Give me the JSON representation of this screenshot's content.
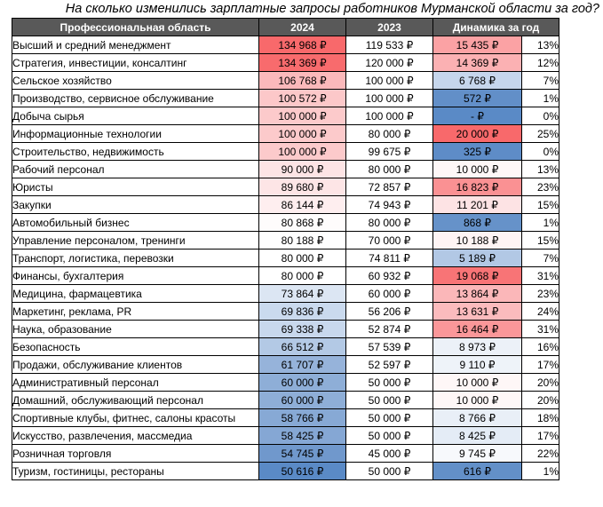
{
  "title": "На сколько изменились зарплатные запросы работников Мурманской области за год?",
  "headers": {
    "area": "Профессиональная область",
    "y2024": "2024",
    "y2023": "2023",
    "dynamics": "Динамика за год"
  },
  "colors": {
    "header_bg": "#595959",
    "high": "#f8696b",
    "mid": "#ffffff",
    "low": "#5a8ac6"
  },
  "rows": [
    {
      "area": "Высший и средний менеджмент",
      "y2024": "134 968 ₽",
      "y2023": "119 533 ₽",
      "diff": "15 435 ₽",
      "pct": "13%",
      "c2024": "#f8696b",
      "cdiff": "#fba2a4"
    },
    {
      "area": "Стратегия, инвестиции, консалтинг",
      "y2024": "134 369 ₽",
      "y2023": "120 000 ₽",
      "diff": "14 369 ₽",
      "pct": "12%",
      "c2024": "#f86b6d",
      "cdiff": "#fbb1b3"
    },
    {
      "area": "Сельское хозяйство",
      "y2024": "106 768 ₽",
      "y2023": "100 000 ₽",
      "diff": "6 768 ₽",
      "pct": "7%",
      "c2024": "#fbb9bb",
      "cdiff": "#c6d6ec"
    },
    {
      "area": "Производство, сервисное обслуживание",
      "y2024": "100 572 ₽",
      "y2023": "100 000 ₽",
      "diff": "572 ₽",
      "pct": "1%",
      "c2024": "#fcc8c9",
      "cdiff": "#628fc8"
    },
    {
      "area": "Добыча сырья",
      "y2024": "100 000 ₽",
      "y2023": "100 000 ₽",
      "diff": "-  ₽",
      "pct": "0%",
      "c2024": "#fccacb",
      "cdiff": "#5a8ac6"
    },
    {
      "area": "Информационные технологии",
      "y2024": "100 000 ₽",
      "y2023": "80 000 ₽",
      "diff": "20 000 ₽",
      "pct": "25%",
      "c2024": "#fccacb",
      "cdiff": "#f8696b"
    },
    {
      "area": "Строительство, недвижимость",
      "y2024": "100 000 ₽",
      "y2023": "99 675 ₽",
      "diff": "325 ₽",
      "pct": "0%",
      "c2024": "#fccacb",
      "cdiff": "#5e8cc7"
    },
    {
      "area": "Рабочий персонал",
      "y2024": "90 000 ₽",
      "y2023": "80 000 ₽",
      "diff": "10 000 ₽",
      "pct": "13%",
      "c2024": "#fde4e5",
      "cdiff": "#fef7f7"
    },
    {
      "area": "Юристы",
      "y2024": "89 680 ₽",
      "y2023": "72 857 ₽",
      "diff": "16 823 ₽",
      "pct": "23%",
      "c2024": "#fde5e6",
      "cdiff": "#fa9193"
    },
    {
      "area": "Закупки",
      "y2024": "86 144 ₽",
      "y2023": "74 943 ₽",
      "diff": "11 201 ₽",
      "pct": "15%",
      "c2024": "#feeeef",
      "cdiff": "#fde3e4"
    },
    {
      "area": "Автомобильный бизнес",
      "y2024": "80 868 ₽",
      "y2023": "80 000 ₽",
      "diff": "868 ₽",
      "pct": "1%",
      "c2024": "#fefcfc",
      "cdiff": "#6692c9"
    },
    {
      "area": "Управление персоналом, тренинги",
      "y2024": "80 188 ₽",
      "y2023": "70 000 ₽",
      "diff": "10 188 ₽",
      "pct": "15%",
      "c2024": "#fefefe",
      "cdiff": "#fef4f4"
    },
    {
      "area": "Транспорт, логистика, перевозки",
      "y2024": "80 000 ₽",
      "y2023": "74 811 ₽",
      "diff": "5 189 ₽",
      "pct": "7%",
      "c2024": "#ffffff",
      "cdiff": "#b2c8e5"
    },
    {
      "area": "Финансы, бухгалтерия",
      "y2024": "80 000 ₽",
      "y2023": "60 932 ₽",
      "diff": "19 068 ₽",
      "pct": "31%",
      "c2024": "#ffffff",
      "cdiff": "#f87476"
    },
    {
      "area": "Медицина, фармацевтика",
      "y2024": "73 864 ₽",
      "y2023": "60 000 ₽",
      "diff": "13 864 ₽",
      "pct": "23%",
      "c2024": "#dce6f3",
      "cdiff": "#fbb7b9"
    },
    {
      "area": "Маркетинг, реклама, PR",
      "y2024": "69 836 ₽",
      "y2023": "56 206 ₽",
      "diff": "13 631 ₽",
      "pct": "24%",
      "c2024": "#cadaee",
      "cdiff": "#fbbbbd"
    },
    {
      "area": "Наука, образование",
      "y2024": "69 338 ₽",
      "y2023": "52 874 ₽",
      "diff": "16 464 ₽",
      "pct": "31%",
      "c2024": "#c8d8ed",
      "cdiff": "#fa9799"
    },
    {
      "area": "Безопасность",
      "y2024": "66 512 ₽",
      "y2023": "57 539 ₽",
      "diff": "8 973 ₽",
      "pct": "16%",
      "c2024": "#b3c9e5",
      "cdiff": "#ecf1f8"
    },
    {
      "area": "Продажи, обслуживание клиентов",
      "y2024": "61 707 ₽",
      "y2023": "52 597 ₽",
      "diff": "9 110 ₽",
      "pct": "17%",
      "c2024": "#96b3da",
      "cdiff": "#eef3f9"
    },
    {
      "area": "Административный персонал",
      "y2024": "60 000 ₽",
      "y2023": "50 000 ₽",
      "diff": "10 000 ₽",
      "pct": "20%",
      "c2024": "#8eaed7",
      "cdiff": "#fef7f7"
    },
    {
      "area": "Домашний, обслуживающий персонал",
      "y2024": "60 000 ₽",
      "y2023": "50 000 ₽",
      "diff": "10 000 ₽",
      "pct": "20%",
      "c2024": "#8eaed7",
      "cdiff": "#fef7f7"
    },
    {
      "area": "Спортивные клубы, фитнес, салоны красоты",
      "y2024": "58 766 ₽",
      "y2023": "50 000 ₽",
      "diff": "8 766 ₽",
      "pct": "18%",
      "c2024": "#87a9d5",
      "cdiff": "#e9eff7"
    },
    {
      "area": "Искусство, развлечения, массмедиа",
      "y2024": "58 425 ₽",
      "y2023": "50 000 ₽",
      "diff": "8 425 ₽",
      "pct": "17%",
      "c2024": "#85a7d4",
      "cdiff": "#e4ecf6"
    },
    {
      "area": "Розничная торговля",
      "y2024": "54 745 ₽",
      "y2023": "45 000 ₽",
      "diff": "9 745 ₽",
      "pct": "22%",
      "c2024": "#7098cc",
      "cdiff": "#f7f9fc"
    },
    {
      "area": "Туризм, гостиницы, рестораны",
      "y2024": "50 616 ₽",
      "y2023": "50 000 ₽",
      "diff": "616 ₽",
      "pct": "1%",
      "c2024": "#5a8ac6",
      "cdiff": "#6390c8"
    }
  ]
}
